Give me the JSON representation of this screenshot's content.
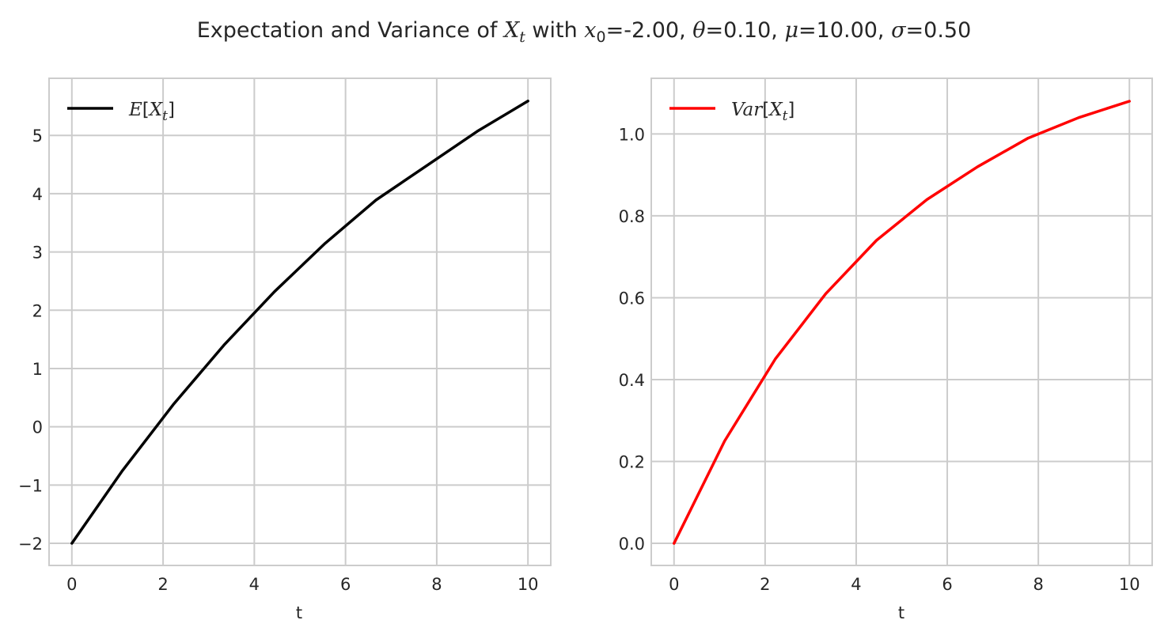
{
  "figure": {
    "title_parts": {
      "prefix": "Expectation and Variance of ",
      "var_X": "X",
      "sub_t": "t",
      "with": " with ",
      "var_x": "x",
      "sub_0": "0",
      "x0_value": "=-2.00, ",
      "theta_sym": "θ",
      "theta_value": "=0.10, ",
      "mu_sym": "μ",
      "mu_value": "=10.00, ",
      "sigma_sym": "σ",
      "sigma_value": "=0.50"
    }
  },
  "chart_data": [
    {
      "type": "line",
      "xlabel": "t",
      "ylabel": "",
      "xlim": [
        -0.5,
        10.5
      ],
      "ylim": [
        -2.38,
        5.98
      ],
      "xticks": [
        0,
        2,
        4,
        6,
        8,
        10
      ],
      "xtick_labels": [
        "0",
        "2",
        "4",
        "6",
        "8",
        "10"
      ],
      "yticks": [
        -2,
        -1,
        0,
        1,
        2,
        3,
        4,
        5
      ],
      "ytick_labels": [
        "−2",
        "−1",
        "0",
        "1",
        "2",
        "3",
        "4",
        "5"
      ],
      "grid": true,
      "legend_placement": "top-left",
      "series": [
        {
          "name": "E[X_t]",
          "legend_parts": {
            "fn": "E",
            "open": "[",
            "var": "X",
            "sub": "t",
            "close": "]"
          },
          "color": "#000000",
          "x": [
            0,
            1.111,
            2.222,
            3.333,
            4.444,
            5.556,
            6.667,
            7.778,
            8.889,
            10
          ],
          "y": [
            -2.0,
            -0.75,
            0.38,
            1.4,
            2.32,
            3.15,
            3.89,
            4.48,
            5.07,
            5.59
          ]
        }
      ]
    },
    {
      "type": "line",
      "xlabel": "t",
      "ylabel": "",
      "xlim": [
        -0.5,
        10.5
      ],
      "ylim": [
        -0.054,
        1.136
      ],
      "xticks": [
        0,
        2,
        4,
        6,
        8,
        10
      ],
      "xtick_labels": [
        "0",
        "2",
        "4",
        "6",
        "8",
        "10"
      ],
      "yticks": [
        0.0,
        0.2,
        0.4,
        0.6,
        0.8,
        1.0
      ],
      "ytick_labels": [
        "0.0",
        "0.2",
        "0.4",
        "0.6",
        "0.8",
        "1.0"
      ],
      "grid": true,
      "legend_placement": "top-left",
      "series": [
        {
          "name": "Var[X_t]",
          "legend_parts": {
            "fn": "Var",
            "open": "[",
            "var": "X",
            "sub": "t",
            "close": "]"
          },
          "color": "#ff0000",
          "x": [
            0,
            1.111,
            2.222,
            3.333,
            4.444,
            5.556,
            6.667,
            7.778,
            8.889,
            10
          ],
          "y": [
            0.0,
            0.25,
            0.45,
            0.61,
            0.74,
            0.84,
            0.92,
            0.99,
            1.04,
            1.08
          ]
        }
      ]
    }
  ]
}
